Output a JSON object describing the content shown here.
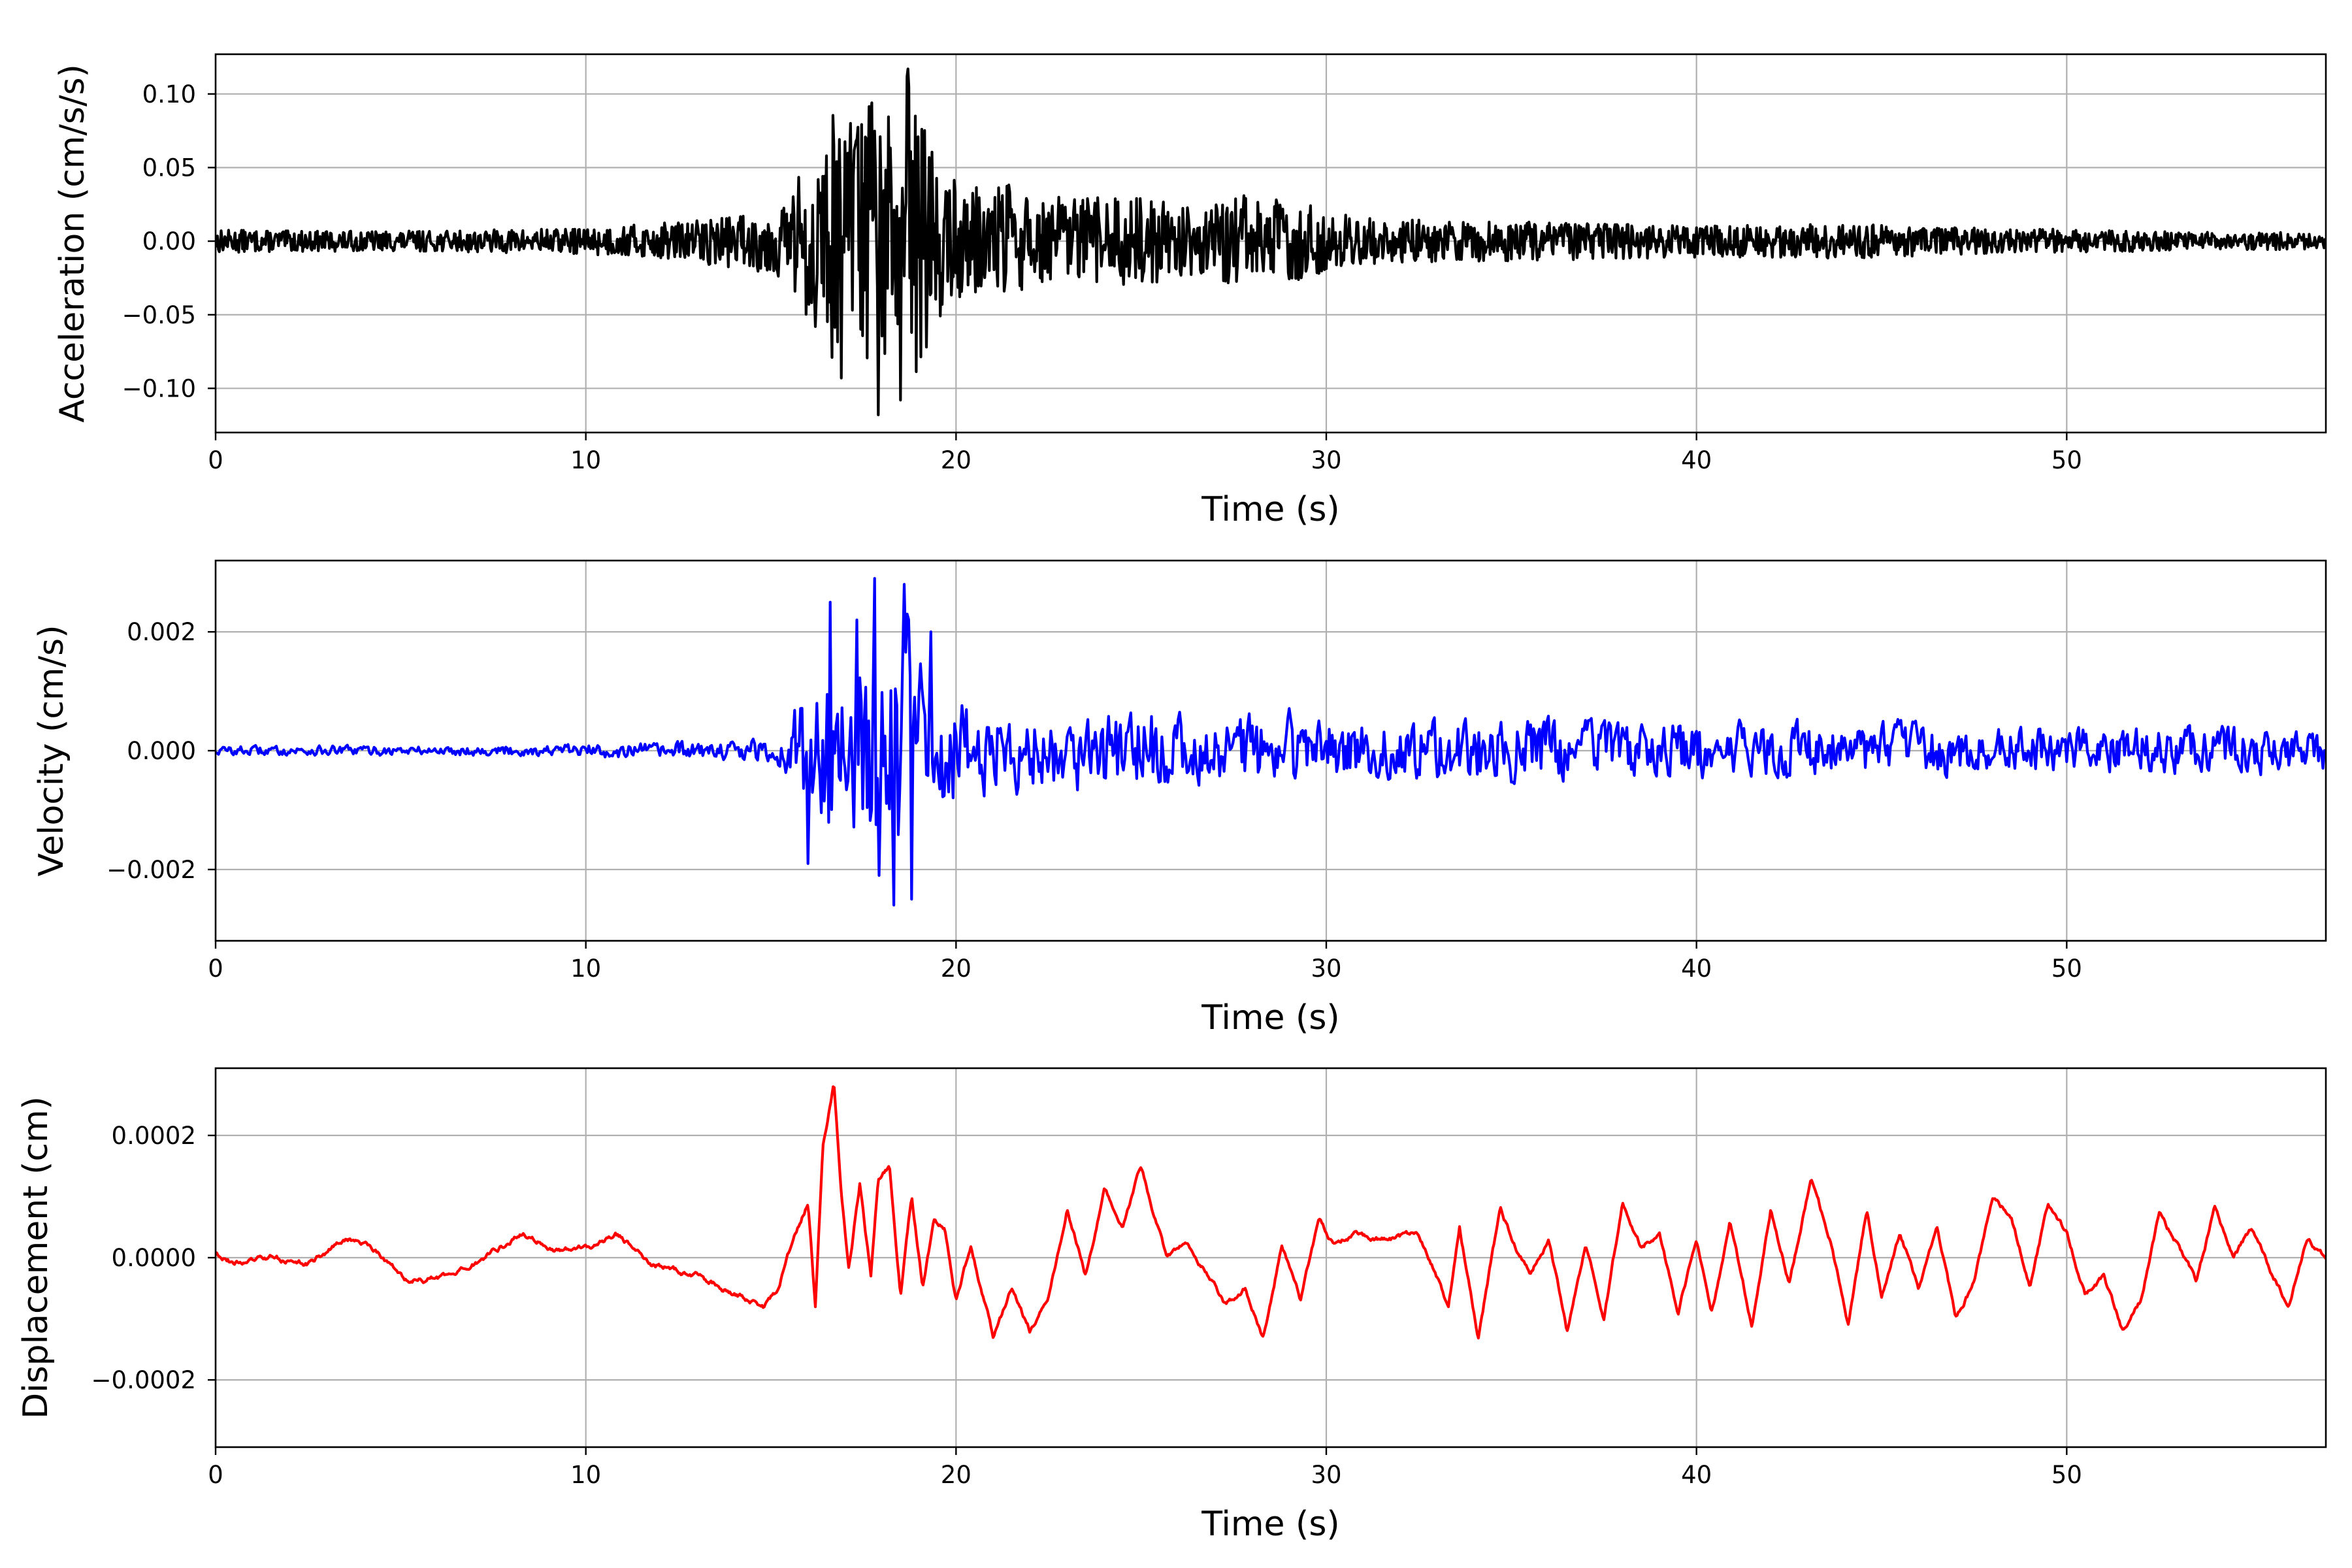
{
  "chart_data": [
    {
      "type": "line",
      "xlabel": "Time (s)",
      "ylabel": "Acceleration (cm/s/s)",
      "xlim": [
        0,
        57
      ],
      "ylim": [
        -0.13,
        0.127
      ],
      "grid": true,
      "xticks": [
        0,
        10,
        20,
        30,
        40,
        50
      ],
      "xtick_labels": [
        "0",
        "10",
        "20",
        "30",
        "40",
        "50"
      ],
      "yticks": [
        -0.1,
        -0.05,
        0.0,
        0.05,
        0.1
      ],
      "ytick_labels": [
        "−0.10",
        "−0.05",
        "0.00",
        "0.05",
        "0.10"
      ],
      "series": [
        {
          "color": "#000000",
          "x": [
            0,
            2,
            4,
            6,
            8,
            10,
            12,
            14,
            15,
            15.5,
            15.9,
            16.2,
            16.5,
            16.7,
            16.9,
            17.1,
            17.3,
            17.5,
            17.7,
            17.9,
            18.1,
            18.3,
            18.5,
            18.7,
            18.9,
            19.1,
            19.3,
            19.5,
            19.7,
            20.0,
            20.5,
            21.0,
            21.5,
            22.0,
            23.0,
            24.0,
            25.0,
            26.0,
            27.0,
            28.0,
            28.8,
            29.0,
            29.5,
            30,
            32,
            34,
            36,
            38,
            40,
            42,
            44,
            46,
            48,
            50,
            52,
            54,
            56,
            57
          ],
          "envelope": [
            0.008,
            0.007,
            0.007,
            0.007,
            0.008,
            0.009,
            0.012,
            0.018,
            0.022,
            0.03,
            0.055,
            0.04,
            0.062,
            0.09,
            0.07,
            0.08,
            0.095,
            0.1,
            0.112,
            0.095,
            0.085,
            0.09,
            0.095,
            0.117,
            0.09,
            0.085,
            0.075,
            0.06,
            0.05,
            0.04,
            0.038,
            0.035,
            0.04,
            0.03,
            0.03,
            0.03,
            0.03,
            0.025,
            0.025,
            0.035,
            0.03,
            0.033,
            0.025,
            0.02,
            0.015,
            0.014,
            0.013,
            0.012,
            0.011,
            0.011,
            0.012,
            0.01,
            0.009,
            0.008,
            0.007,
            0.006,
            0.006,
            0.005
          ],
          "peaks": [
            [
              16.2,
              -0.058
            ],
            [
              16.7,
              0.065
            ],
            [
              16.9,
              -0.093
            ],
            [
              17.3,
              0.068
            ],
            [
              17.7,
              0.087
            ],
            [
              17.9,
              -0.118
            ],
            [
              18.7,
              0.117
            ],
            [
              18.5,
              -0.108
            ],
            [
              19.2,
              -0.072
            ],
            [
              18.9,
              0.085
            ]
          ]
        }
      ]
    },
    {
      "type": "line",
      "xlabel": "Time (s)",
      "ylabel": "Velocity (cm/s)",
      "xlim": [
        0,
        57
      ],
      "ylim": [
        -0.0032,
        0.0032
      ],
      "grid": true,
      "xticks": [
        0,
        10,
        20,
        30,
        40,
        50
      ],
      "xtick_labels": [
        "0",
        "10",
        "20",
        "30",
        "40",
        "50"
      ],
      "yticks": [
        -0.002,
        0.0,
        0.002
      ],
      "ytick_labels": [
        "−0.002",
        "0.000",
        "0.002"
      ],
      "series": [
        {
          "color": "#0000ff",
          "x": [
            0,
            2,
            4,
            6,
            8,
            10,
            12,
            14,
            15,
            15.5,
            16.0,
            16.3,
            16.6,
            16.9,
            17.2,
            17.5,
            17.8,
            18.1,
            18.4,
            18.7,
            19.0,
            19.3,
            19.6,
            20.0,
            21.0,
            22.0,
            23.0,
            24.0,
            25.0,
            26.0,
            27.0,
            28.0,
            29.0,
            30.0,
            32.0,
            34.0,
            36.0,
            38.0,
            40.0,
            42.0,
            44.0,
            46.0,
            48.0,
            50.0,
            52.0,
            54.0,
            56.0,
            57
          ],
          "envelope": [
            0.0001,
            0.0001,
            0.00012,
            0.0001,
            0.00012,
            0.00015,
            0.00018,
            0.0002,
            0.0003,
            0.0006,
            0.0018,
            0.0015,
            0.0025,
            0.0022,
            0.002,
            0.0022,
            0.0029,
            0.0024,
            0.0026,
            0.0028,
            0.0022,
            0.0018,
            0.0015,
            0.0013,
            0.0009,
            0.0009,
            0.0009,
            0.0009,
            0.001,
            0.0008,
            0.0008,
            0.0008,
            0.0008,
            0.0007,
            0.0006,
            0.0007,
            0.0007,
            0.0006,
            0.0006,
            0.0006,
            0.0006,
            0.0006,
            0.0005,
            0.0005,
            0.0005,
            0.0005,
            0.0005,
            0.0005
          ],
          "peaks": [
            [
              16.0,
              -0.0019
            ],
            [
              16.6,
              0.0025
            ],
            [
              17.3,
              0.0022
            ],
            [
              17.8,
              0.0029
            ],
            [
              17.9,
              -0.0021
            ],
            [
              18.3,
              -0.0026
            ],
            [
              18.6,
              0.0028
            ],
            [
              18.8,
              -0.0025
            ],
            [
              19.3,
              0.002
            ]
          ]
        }
      ]
    },
    {
      "type": "line",
      "xlabel": "Time (s)",
      "ylabel": "Displacement (cm)",
      "xlim": [
        0,
        57
      ],
      "ylim": [
        -0.00031,
        0.00031
      ],
      "grid": true,
      "xticks": [
        0,
        10,
        20,
        30,
        40,
        50
      ],
      "xtick_labels": [
        "0",
        "10",
        "20",
        "30",
        "40",
        "50"
      ],
      "yticks": [
        -0.0002,
        0.0,
        0.0002
      ],
      "ytick_labels": [
        "−0.0002",
        "0.0000",
        "0.0002"
      ],
      "series": [
        {
          "color": "#ff0000",
          "x": [
            0,
            0.5,
            1.5,
            2.5,
            3.5,
            4.2,
            5.2,
            6.5,
            7.5,
            8.3,
            9.2,
            10.2,
            10.8,
            11.8,
            13.0,
            14.0,
            14.8,
            15.2,
            15.6,
            16.0,
            16.2,
            16.4,
            16.7,
            16.9,
            17.1,
            17.4,
            17.7,
            17.9,
            18.2,
            18.5,
            18.8,
            19.1,
            19.4,
            19.7,
            20.0,
            20.4,
            21.0,
            21.5,
            22.0,
            22.5,
            23.0,
            23.5,
            24.0,
            24.5,
            25.0,
            25.3,
            25.7,
            26.2,
            26.8,
            27.3,
            27.8,
            28.3,
            28.8,
            29.3,
            29.8,
            30.2,
            30.8,
            31.5,
            32.5,
            33.3,
            33.6,
            34.1,
            34.7,
            35.1,
            35.5,
            36.0,
            36.5,
            37.0,
            37.5,
            38.0,
            38.5,
            39.0,
            39.5,
            40.0,
            40.4,
            40.9,
            41.5,
            42.0,
            42.5,
            43.1,
            43.6,
            44.1,
            44.6,
            45.0,
            45.5,
            46.0,
            46.5,
            47.0,
            47.5,
            48.0,
            48.5,
            49.0,
            49.5,
            50.0,
            50.5,
            51.0,
            51.5,
            52.0,
            52.5,
            53.0,
            53.5,
            54.0,
            54.5,
            55.0,
            55.5,
            56.0,
            56.5,
            57
          ],
          "y": [
            1e-05,
            -1e-05,
            0.0,
            -1e-05,
            3e-05,
            2e-05,
            -4e-05,
            -3e-05,
            1e-05,
            4e-05,
            1e-05,
            2e-05,
            4e-05,
            -1e-05,
            -3e-05,
            -6e-05,
            -8e-05,
            -5e-05,
            3e-05,
            9e-05,
            -8e-05,
            0.00018,
            0.00028,
            0.0001,
            -2e-05,
            0.00012,
            -3e-05,
            0.00013,
            0.00015,
            -6e-05,
            0.0001,
            -5e-05,
            6e-05,
            5e-05,
            -7e-05,
            2e-05,
            -0.00013,
            -5e-05,
            -0.00012,
            -6e-05,
            8e-05,
            -3e-05,
            0.00011,
            5e-05,
            0.00015,
            8e-05,
            0.0,
            3e-05,
            -3e-05,
            -8e-05,
            -5e-05,
            -0.00013,
            2e-05,
            -7e-05,
            6e-05,
            2e-05,
            4e-05,
            3e-05,
            4e-05,
            -8e-05,
            5e-05,
            -0.00013,
            8e-05,
            2e-05,
            -3e-05,
            3e-05,
            -0.00012,
            2e-05,
            -0.0001,
            9e-05,
            2e-05,
            4e-05,
            -9e-05,
            3e-05,
            -0.0001,
            6e-05,
            -0.00011,
            8e-05,
            -4e-05,
            0.00013,
            3e-05,
            -0.00011,
            8e-05,
            -6e-05,
            4e-05,
            -5e-05,
            5e-05,
            -0.0001,
            -4e-05,
            0.0001,
            7e-05,
            -5e-05,
            9e-05,
            4e-05,
            -6e-05,
            -3e-05,
            -0.00012,
            -7e-05,
            7e-05,
            2e-05,
            -4e-05,
            8e-05,
            0.0,
            5e-05,
            -2e-05,
            -8e-05,
            3e-05,
            0.0
          ]
        }
      ]
    }
  ]
}
